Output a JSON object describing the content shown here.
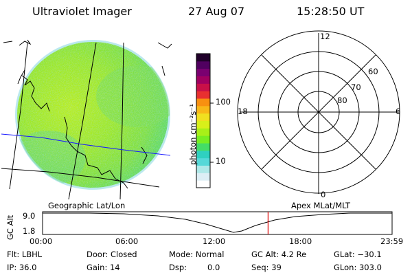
{
  "header": {
    "instrument": "Ultraviolet Imager",
    "date": "27 Aug 07",
    "time": "15:28:50 UT"
  },
  "colorbar": {
    "unit_label": "photon cm⁻²s⁻¹",
    "ticks": [
      "100",
      "10"
    ],
    "colors": [
      "#ffffff",
      "#ddeef5",
      "#aee8e8",
      "#55d8d8",
      "#2fd0c0",
      "#44dd66",
      "#77ee22",
      "#a8f018",
      "#d8f01a",
      "#f0e020",
      "#f8b818",
      "#f89010",
      "#e83030",
      "#c81048",
      "#a00060",
      "#7a0070",
      "#500060",
      "#20002a"
    ]
  },
  "polar": {
    "mlt_labels": {
      "top": "12",
      "left": "18",
      "right": "6",
      "bottom": "0"
    },
    "lat_labels": [
      "60",
      "70",
      "80"
    ]
  },
  "footer": {
    "left_title": "Geographic Lat/Lon",
    "right_title": "Apex MLat/MLT",
    "axis_label": "GC Alt",
    "y_max": "9.0",
    "y_min": "1.8",
    "time_ticks": [
      "00:00",
      "06:00",
      "12:00",
      "18:00",
      "23:59"
    ],
    "current_time_fraction": 0.6452
  },
  "status": {
    "flt": "Flt: LBHL",
    "ip": "IP: 36.0",
    "door": "Door: Closed",
    "gain": "Gain: 14",
    "mode": "Mode: Normal",
    "dsp_label": "Dsp:",
    "dsp_value": "0.0",
    "gcalt": "GC Alt: 4.2 Re",
    "seq": "Seq: 39",
    "glat": "GLat: −30.1",
    "glon": "GLon: 303.0"
  },
  "colors": {
    "grid_blue": "#1a1aff",
    "marker_red": "#dd0000",
    "image_green": "#88e030",
    "image_blue": "#22a8f0"
  }
}
